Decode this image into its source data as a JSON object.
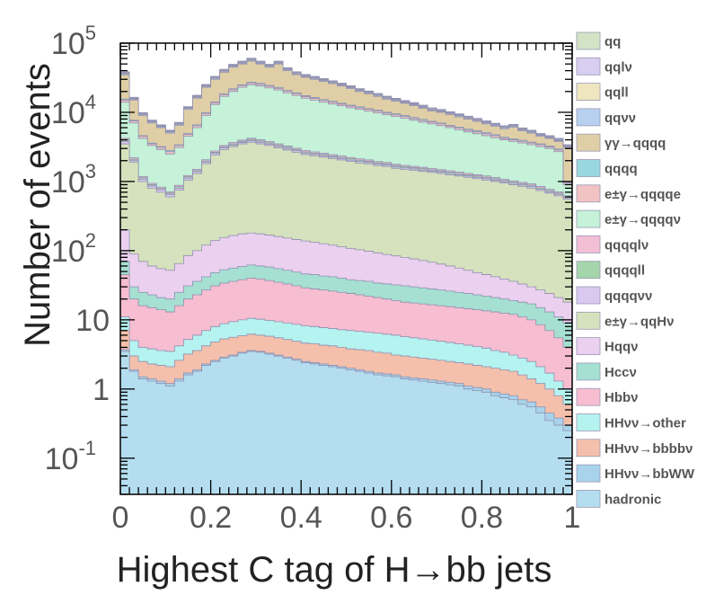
{
  "chart_data": {
    "type": "area",
    "stacked": true,
    "xlabel": "Highest C tag of H→bb jets",
    "ylabel": "Number of events",
    "xlim": [
      0,
      1
    ],
    "ylim": [
      0.03,
      100000
    ],
    "yscale": "log",
    "x_ticks": [
      "0",
      "0.2",
      "0.4",
      "0.6",
      "0.8",
      "1"
    ],
    "y_ticks": [
      {
        "base": "10",
        "exp": "5",
        "value": 100000
      },
      {
        "base": "10",
        "exp": "4",
        "value": 10000
      },
      {
        "base": "10",
        "exp": "3",
        "value": 1000
      },
      {
        "base": "10",
        "exp": "2",
        "value": 100
      },
      {
        "base": "10",
        "exp": "",
        "value": 10
      },
      {
        "base": "1",
        "exp": "",
        "value": 1
      },
      {
        "base": "10",
        "exp": "-1",
        "value": 0.1
      }
    ],
    "bins": [
      0.0,
      0.02,
      0.04,
      0.06,
      0.08,
      0.1,
      0.12,
      0.14,
      0.16,
      0.18,
      0.2,
      0.22,
      0.24,
      0.26,
      0.28,
      0.3,
      0.32,
      0.34,
      0.36,
      0.38,
      0.4,
      0.42,
      0.44,
      0.46,
      0.48,
      0.5,
      0.52,
      0.54,
      0.56,
      0.58,
      0.6,
      0.62,
      0.64,
      0.66,
      0.68,
      0.7,
      0.72,
      0.74,
      0.76,
      0.78,
      0.8,
      0.82,
      0.84,
      0.86,
      0.88,
      0.9,
      0.92,
      0.94,
      0.96,
      0.98,
      1.0
    ],
    "legend_position": "right",
    "series": [
      {
        "name": "hadronic",
        "color": "#b4ddf0",
        "cumulative": [
          3.5,
          1.8,
          1.4,
          1.3,
          1.2,
          1.1,
          1.3,
          1.6,
          1.8,
          2.2,
          2.5,
          2.8,
          3.0,
          3.3,
          3.5,
          3.4,
          3.2,
          3.0,
          2.8,
          2.6,
          2.4,
          2.3,
          2.2,
          2.1,
          2.0,
          1.9,
          1.8,
          1.7,
          1.6,
          1.55,
          1.5,
          1.4,
          1.35,
          1.3,
          1.25,
          1.2,
          1.15,
          1.1,
          1.0,
          0.95,
          0.9,
          0.8,
          0.75,
          0.7,
          0.6,
          0.55,
          0.45,
          0.35,
          0.3,
          0.25
        ]
      },
      {
        "name": "HHνν→bbWW",
        "color": "#a8d3ea",
        "cumulative": [
          3.7,
          1.9,
          1.5,
          1.4,
          1.3,
          1.2,
          1.4,
          1.7,
          1.9,
          2.3,
          2.6,
          2.9,
          3.1,
          3.4,
          3.6,
          3.5,
          3.3,
          3.1,
          2.9,
          2.7,
          2.5,
          2.4,
          2.3,
          2.2,
          2.1,
          2.0,
          1.9,
          1.8,
          1.7,
          1.65,
          1.6,
          1.5,
          1.45,
          1.4,
          1.35,
          1.3,
          1.25,
          1.2,
          1.1,
          1.05,
          1.0,
          0.9,
          0.85,
          0.8,
          0.7,
          0.65,
          0.55,
          0.45,
          0.38,
          0.3
        ]
      },
      {
        "name": "HHνν→bbbbν",
        "color": "#f4c0ac",
        "cumulative": [
          7,
          3,
          2.5,
          2.3,
          2.2,
          2.1,
          2.6,
          3.2,
          3.6,
          4.2,
          4.8,
          5.3,
          5.6,
          5.9,
          6.2,
          6.0,
          5.8,
          5.5,
          5.2,
          4.9,
          4.6,
          4.5,
          4.3,
          4.2,
          4.0,
          3.8,
          3.7,
          3.6,
          3.4,
          3.3,
          3.1,
          3.0,
          2.9,
          2.8,
          2.7,
          2.6,
          2.5,
          2.4,
          2.3,
          2.2,
          2.1,
          2.0,
          1.9,
          1.8,
          1.6,
          1.4,
          1.2,
          1.0,
          0.8,
          0.6
        ]
      },
      {
        "name": "HHνν→other",
        "color": "#b5f3f0",
        "cumulative": [
          11,
          5,
          4,
          3.8,
          3.6,
          3.5,
          4.2,
          5.2,
          6,
          7,
          8,
          8.8,
          9.4,
          10,
          10.5,
          10.2,
          9.8,
          9.4,
          9,
          8.6,
          8.2,
          8.0,
          7.7,
          7.5,
          7.2,
          7.0,
          6.8,
          6.6,
          6.4,
          6.2,
          6.0,
          5.7,
          5.5,
          5.3,
          5.1,
          4.9,
          4.7,
          4.5,
          4.3,
          4.1,
          3.9,
          3.6,
          3.4,
          3.1,
          2.8,
          2.5,
          2.1,
          1.7,
          1.3,
          1.0
        ]
      },
      {
        "name": "Hbbν",
        "color": "#f7bdd0",
        "cumulative": [
          45,
          20,
          16,
          15,
          14,
          13,
          16,
          20,
          23,
          27,
          31,
          34,
          36,
          38,
          40,
          39,
          37,
          35,
          33,
          31,
          29,
          28,
          27,
          26,
          25,
          24,
          23,
          22,
          21,
          20,
          19,
          18,
          17.5,
          17,
          16.5,
          16,
          15.5,
          15,
          14.5,
          14,
          13.5,
          13,
          12.5,
          12,
          11,
          10,
          8.5,
          7,
          5.5,
          4
        ]
      },
      {
        "name": "Hccν",
        "color": "#a6e0d2",
        "cumulative": [
          70,
          30,
          25,
          23,
          21,
          20,
          25,
          31,
          36,
          42,
          48,
          53,
          56,
          59,
          62,
          60,
          58,
          55,
          52,
          49,
          46,
          45,
          43,
          42,
          40,
          38,
          37,
          36,
          34,
          33,
          32,
          31,
          30,
          29,
          28,
          27,
          26,
          25,
          24,
          23,
          22,
          21,
          20,
          19,
          18,
          17,
          15,
          13,
          11,
          9
        ]
      },
      {
        "name": "Hqqν",
        "color": "#ebd0f0",
        "cumulative": [
          200,
          90,
          70,
          60,
          55,
          52,
          65,
          85,
          100,
          120,
          140,
          155,
          165,
          175,
          180,
          175,
          168,
          160,
          152,
          145,
          138,
          132,
          126,
          120,
          114,
          108,
          103,
          98,
          93,
          88,
          84,
          80,
          76,
          72,
          68,
          64,
          60,
          56,
          52,
          48,
          45,
          42,
          39,
          36,
          33,
          30,
          27,
          24,
          21,
          18
        ]
      },
      {
        "name": "e±γ→qqHν",
        "color": "#d6e2bd",
        "cumulative": [
          3500,
          1900,
          1000,
          800,
          700,
          600,
          750,
          1050,
          1300,
          1800,
          2400,
          2900,
          3200,
          3500,
          3700,
          3500,
          3300,
          3050,
          2850,
          2650,
          2450,
          2350,
          2250,
          2150,
          2050,
          1950,
          1850,
          1800,
          1700,
          1650,
          1550,
          1500,
          1450,
          1400,
          1350,
          1300,
          1250,
          1200,
          1150,
          1100,
          1050,
          1000,
          950,
          900,
          850,
          800,
          740,
          680,
          620,
          560
        ]
      },
      {
        "name": "qqqqνν",
        "color": "#d9c8f0",
        "cumulative": [
          3800,
          2000,
          1080,
          860,
          760,
          650,
          800,
          1120,
          1380,
          1900,
          2550,
          3050,
          3350,
          3650,
          3880,
          3680,
          3460,
          3200,
          2990,
          2780,
          2570,
          2460,
          2360,
          2250,
          2150,
          2040,
          1940,
          1880,
          1780,
          1730,
          1620,
          1570,
          1520,
          1460,
          1410,
          1360,
          1310,
          1250,
          1200,
          1150,
          1100,
          1040,
          990,
          940,
          890,
          840,
          770,
          710,
          650,
          580
        ]
      },
      {
        "name": "qqqqll",
        "color": "#a5d5ab",
        "cumulative": [
          4000,
          2100,
          1130,
          900,
          790,
          680,
          840,
          1170,
          1440,
          1980,
          2650,
          3180,
          3500,
          3800,
          4050,
          3840,
          3620,
          3350,
          3130,
          2900,
          2680,
          2570,
          2460,
          2350,
          2240,
          2130,
          2030,
          1960,
          1860,
          1800,
          1700,
          1640,
          1590,
          1530,
          1470,
          1420,
          1370,
          1310,
          1250,
          1200,
          1150,
          1090,
          1030,
          980,
          930,
          880,
          810,
          740,
          680,
          600
        ]
      },
      {
        "name": "qqqqlν",
        "color": "#f2bfd4",
        "cumulative": [
          4200,
          2200,
          1180,
          940,
          830,
          710,
          880,
          1220,
          1500,
          2060,
          2760,
          3310,
          3650,
          3960,
          4220,
          4000,
          3780,
          3500,
          3260,
          3030,
          2800,
          2680,
          2570,
          2450,
          2340,
          2220,
          2120,
          2050,
          1940,
          1880,
          1770,
          1710,
          1660,
          1600,
          1540,
          1480,
          1430,
          1370,
          1310,
          1250,
          1200,
          1140,
          1080,
          1020,
          970,
          920,
          850,
          770,
          710,
          620
        ]
      },
      {
        "name": "e±γ→qqqqν",
        "color": "#c5f2d8",
        "cumulative": [
          14000,
          7000,
          4200,
          3300,
          2900,
          2500,
          3100,
          4500,
          6000,
          9000,
          13000,
          17000,
          20000,
          23000,
          25000,
          24000,
          22500,
          21000,
          19000,
          17500,
          16000,
          15000,
          14000,
          13200,
          12400,
          11600,
          11000,
          10400,
          9800,
          9200,
          8700,
          8200,
          7700,
          7200,
          6800,
          6400,
          6000,
          5600,
          5200,
          4900,
          4600,
          4300,
          4000,
          3800,
          3600,
          3400,
          3200,
          3000,
          2700,
          900
        ]
      },
      {
        "name": "e±γ→qqqqe",
        "color": "#f2c3c3",
        "cumulative": [
          15000,
          7500,
          4500,
          3500,
          3100,
          2700,
          3300,
          4800,
          6400,
          9600,
          13800,
          18000,
          21200,
          24300,
          26500,
          25400,
          23800,
          22200,
          20100,
          18500,
          16900,
          15900,
          14800,
          14000,
          13100,
          12300,
          11600,
          11000,
          10400,
          9700,
          9200,
          8700,
          8100,
          7600,
          7200,
          6800,
          6300,
          5900,
          5500,
          5200,
          4900,
          4600,
          4200,
          4000,
          3800,
          3600,
          3400,
          3150,
          2850,
          950
        ]
      },
      {
        "name": "qqqq",
        "color": "#99d7df",
        "cumulative": [
          15500,
          7700,
          4600,
          3600,
          3200,
          2800,
          3400,
          4950,
          6600,
          9900,
          14200,
          18600,
          21900,
          25000,
          27300,
          26200,
          24500,
          22900,
          20700,
          19100,
          17400,
          16400,
          15300,
          14400,
          13500,
          12700,
          12000,
          11300,
          10700,
          10000,
          9500,
          9000,
          8400,
          7900,
          7400,
          7000,
          6500,
          6100,
          5700,
          5400,
          5100,
          4750,
          4350,
          4150,
          3950,
          3700,
          3500,
          3250,
          2950,
          980
        ]
      },
      {
        "name": "γγ→qqqq",
        "color": "#e0cfa6",
        "cumulative": [
          35000,
          15000,
          9000,
          7000,
          6000,
          5000,
          6500,
          11000,
          16000,
          23000,
          30000,
          38000,
          45000,
          50000,
          55000,
          50000,
          45000,
          50000,
          40000,
          35000,
          32000,
          30000,
          28000,
          26000,
          24000,
          22000,
          20000,
          18500,
          17000,
          15500,
          14500,
          13500,
          12500,
          11500,
          10500,
          10000,
          9300,
          8600,
          8000,
          7400,
          6800,
          6300,
          5800,
          6100,
          5400,
          5000,
          4500,
          4200,
          3800,
          3100
        ]
      },
      {
        "name": "qqνν",
        "color": "#b7d0ef",
        "cumulative": [
          36000,
          15500,
          9300,
          7250,
          6200,
          5200,
          6700,
          11400,
          16500,
          23700,
          31000,
          39000,
          46300,
          51500,
          56600,
          51500,
          46300,
          51500,
          41200,
          36000,
          33000,
          30900,
          28800,
          26800,
          24700,
          22700,
          20600,
          19100,
          17500,
          16000,
          14900,
          13900,
          12900,
          11800,
          10800,
          10300,
          9600,
          8900,
          8200,
          7600,
          7000,
          6500,
          6000,
          6300,
          5550,
          5150,
          4650,
          4300,
          3900,
          3200
        ]
      },
      {
        "name": "qqll",
        "color": "#efe6bf",
        "cumulative": [
          36800,
          15800,
          9500,
          7400,
          6350,
          5300,
          6850,
          11600,
          16900,
          24200,
          31700,
          40000,
          47400,
          52700,
          58000,
          52700,
          47400,
          52700,
          42200,
          36900,
          33800,
          31600,
          29500,
          27400,
          25300,
          23200,
          21100,
          19500,
          17900,
          16400,
          15300,
          14200,
          13200,
          12100,
          11100,
          10500,
          9800,
          9100,
          8400,
          7800,
          7200,
          6650,
          6150,
          6450,
          5700,
          5250,
          4750,
          4400,
          4000,
          3270
        ]
      },
      {
        "name": "qqlν",
        "color": "#d8cef0",
        "cumulative": [
          37600,
          16100,
          9700,
          7550,
          6480,
          5400,
          7000,
          11850,
          17250,
          24700,
          32400,
          40900,
          48400,
          53800,
          59300,
          53800,
          48400,
          53800,
          43100,
          37700,
          34500,
          32300,
          30100,
          28000,
          25800,
          23700,
          21500,
          19900,
          18300,
          16700,
          15600,
          14500,
          13500,
          12400,
          11300,
          10700,
          10000,
          9300,
          8600,
          8000,
          7350,
          6800,
          6300,
          6600,
          5800,
          5350,
          4850,
          4500,
          4100,
          3340
        ]
      },
      {
        "name": "qq",
        "color": "#d3e3c6",
        "cumulative": [
          38500,
          16500,
          9900,
          7700,
          6600,
          5500,
          7150,
          12100,
          17600,
          25200,
          33000,
          41800,
          49500,
          55000,
          60500,
          55000,
          49500,
          55000,
          44000,
          38500,
          35200,
          33000,
          30800,
          28600,
          26400,
          24200,
          22000,
          20300,
          18700,
          17100,
          15900,
          14800,
          13800,
          12700,
          11600,
          11000,
          10200,
          9500,
          8800,
          8150,
          7500,
          6950,
          6400,
          6700,
          5950,
          5500,
          4950,
          4600,
          4200,
          3400
        ]
      }
    ]
  },
  "legend": [
    {
      "label": "qq",
      "color": "#d3e3c6"
    },
    {
      "label": "qqlν",
      "color": "#d8cef0"
    },
    {
      "label": "qqll",
      "color": "#efe6bf"
    },
    {
      "label": "qqνν",
      "color": "#b7d0ef"
    },
    {
      "label": "γγ→qqqq",
      "color": "#e0cfa6"
    },
    {
      "label": "qqqq",
      "color": "#99d7df"
    },
    {
      "label": "e±γ→qqqqe",
      "color": "#f2c3c3"
    },
    {
      "label": "e±γ→qqqqν",
      "color": "#c5f2d8"
    },
    {
      "label": "qqqqlν",
      "color": "#f2bfd4"
    },
    {
      "label": "qqqqll",
      "color": "#a5d5ab"
    },
    {
      "label": "qqqqνν",
      "color": "#d9c8f0"
    },
    {
      "label": "e±γ→qqHν",
      "color": "#d6e2bd"
    },
    {
      "label": "Hqqν",
      "color": "#ebd0f0"
    },
    {
      "label": "Hccν",
      "color": "#a6e0d2"
    },
    {
      "label": "Hbbν",
      "color": "#f7bdd0"
    },
    {
      "label": "HHνν→other",
      "color": "#b5f3f0"
    },
    {
      "label": "HHνν→bbbbν",
      "color": "#f4c0ac"
    },
    {
      "label": "HHνν→bbWW",
      "color": "#a8d3ea"
    },
    {
      "label": "hadronic",
      "color": "#b4ddf0"
    }
  ]
}
